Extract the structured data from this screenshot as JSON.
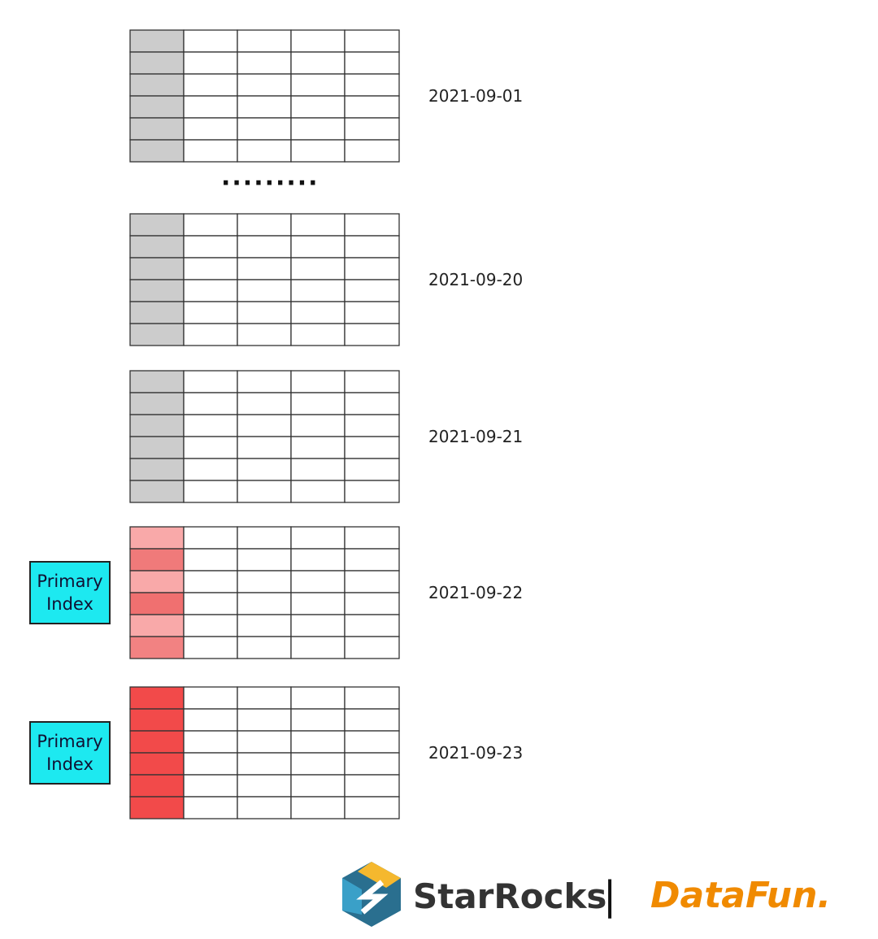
{
  "separator": "·········",
  "partitions": [
    {
      "label": "2021-09-01"
    },
    {
      "label": "2021-09-20"
    },
    {
      "label": "2021-09-21"
    },
    {
      "label": "2021-09-22",
      "index": "Primary Index"
    },
    {
      "label": "2021-09-23",
      "index": "Primary Index"
    }
  ],
  "logo": {
    "brand": "StarRocks",
    "divider": "|",
    "partner": "DataFun."
  }
}
